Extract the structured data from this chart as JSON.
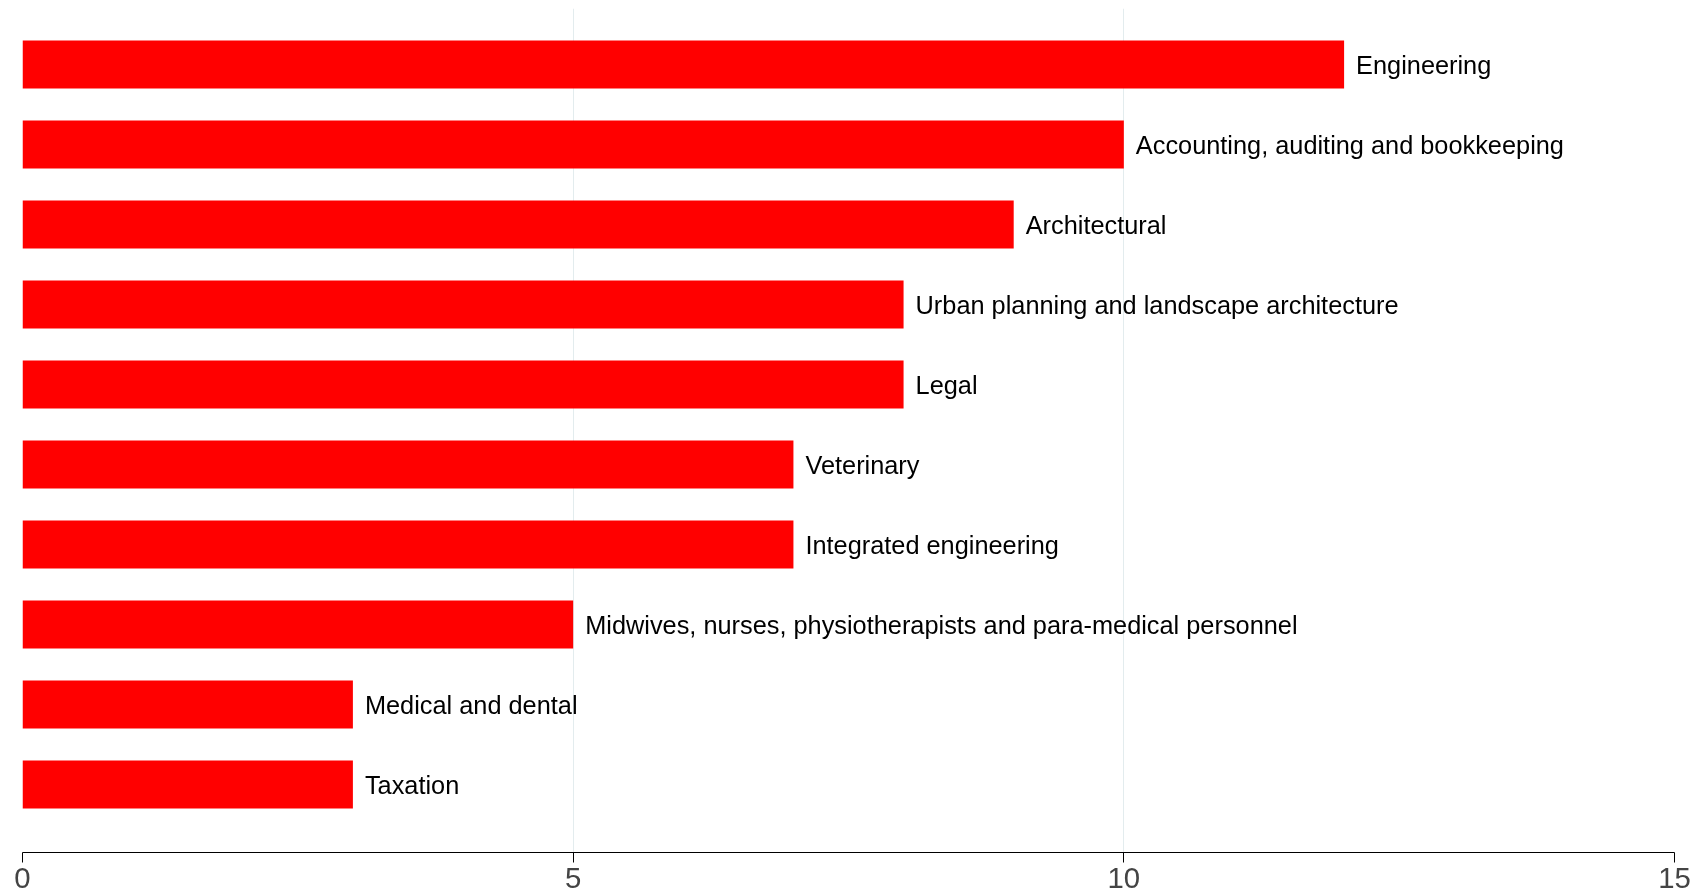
{
  "chart_data": {
    "type": "bar",
    "orientation": "horizontal",
    "categories": [
      "Engineering",
      "Accounting, auditing and bookkeeping",
      "Architectural",
      "Urban planning and landscape architecture",
      "Legal",
      "Veterinary",
      "Integrated engineering",
      "Midwives, nurses, physiotherapists and para-medical personnel",
      "Medical and dental",
      "Taxation"
    ],
    "values": [
      12,
      10,
      9,
      8,
      8,
      7,
      7,
      5,
      3,
      3
    ],
    "color": "#ff0000",
    "xlim": [
      0,
      15
    ],
    "xticks": [
      0,
      5,
      10,
      15
    ],
    "grid": "x"
  }
}
